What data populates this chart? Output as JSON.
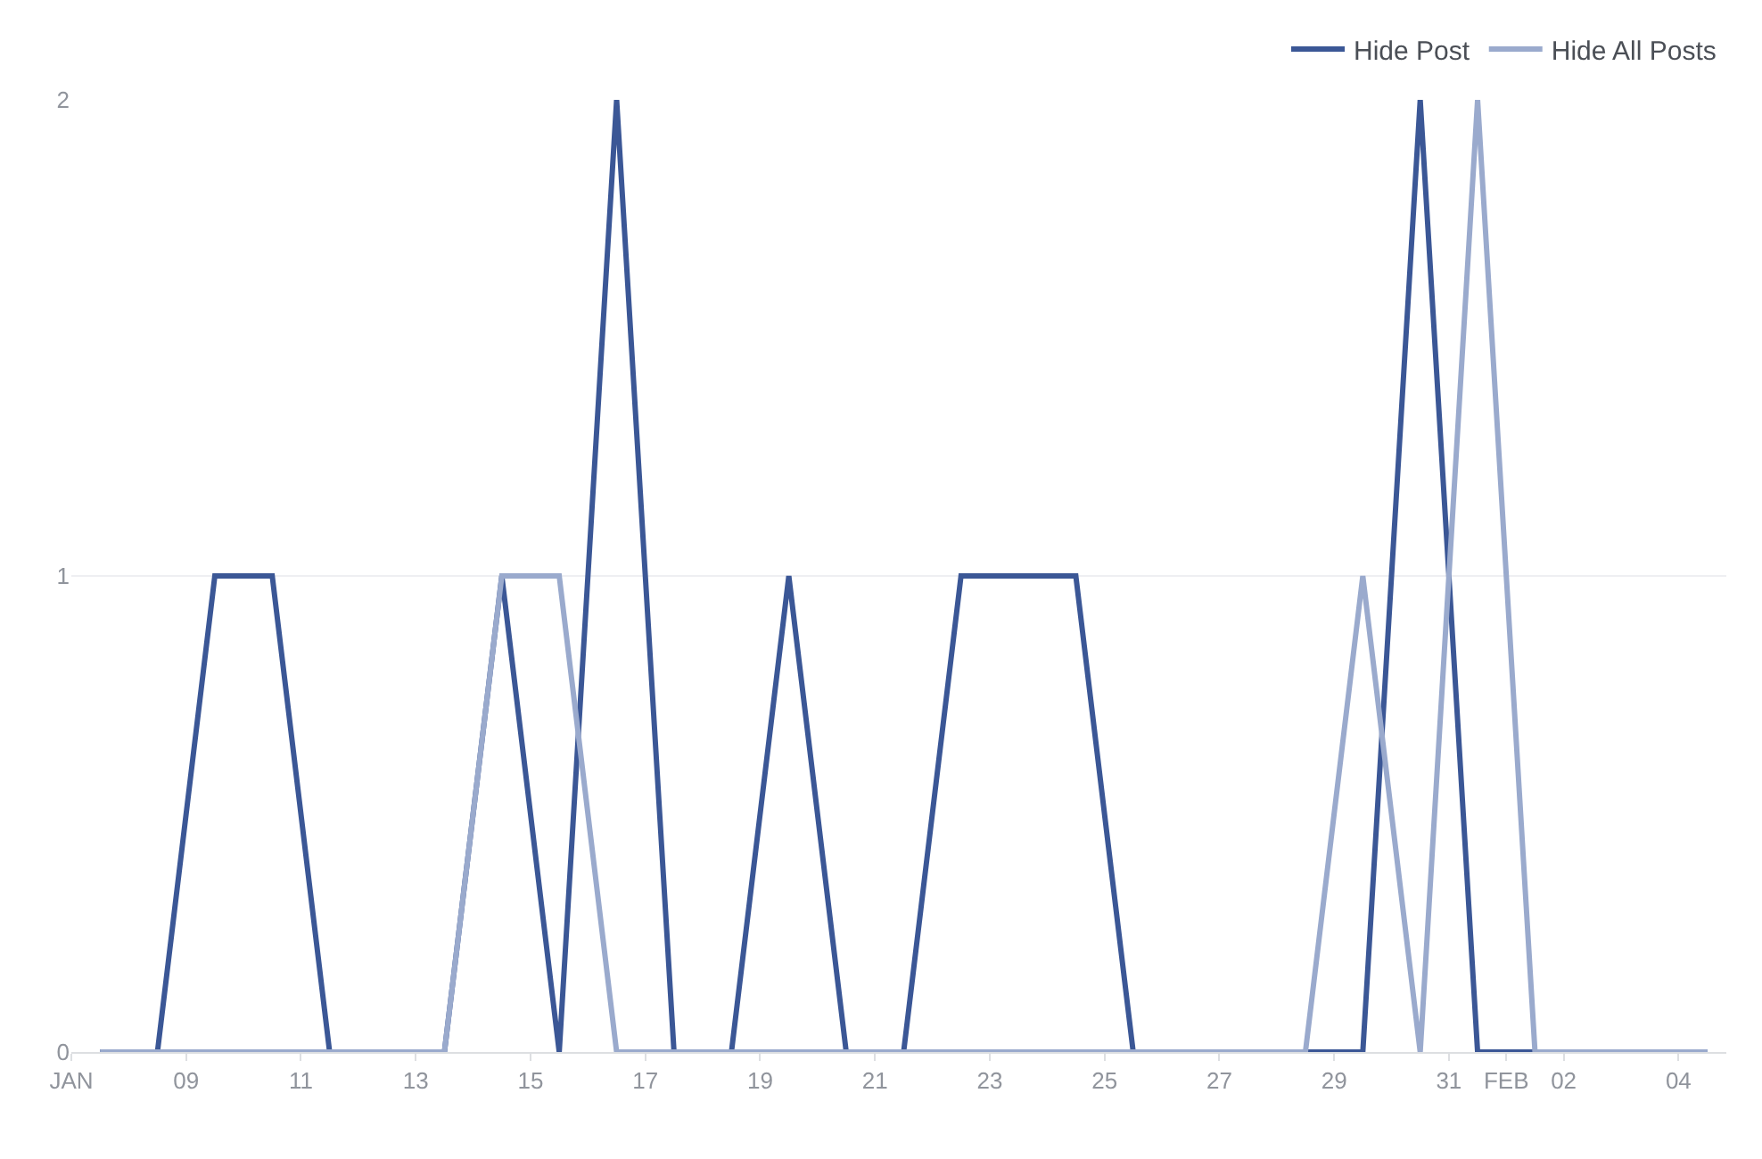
{
  "chart_data": {
    "type": "line",
    "x": [
      "--01-07T12:00",
      "--01-08T12:00",
      "--01-09T12:00",
      "--01-10T12:00",
      "--01-11T12:00",
      "--01-12T12:00",
      "--01-13T12:00",
      "--01-14T12:00",
      "--01-15T12:00",
      "--01-16T12:00",
      "--01-17T12:00",
      "--01-18T12:00",
      "--01-19T12:00",
      "--01-20T12:00",
      "--01-21T12:00",
      "--01-22T12:00",
      "--01-23T12:00",
      "--01-24T12:00",
      "--01-25T12:00",
      "--01-26T12:00",
      "--01-27T12:00",
      "--01-28T12:00",
      "--01-29T12:00",
      "--01-30T12:00",
      "--01-31T12:00",
      "--02-01T12:00",
      "--02-02T12:00",
      "--02-03T12:00",
      "--02-04T12:00"
    ],
    "series": [
      {
        "name": "Hide Post",
        "color": "#3b5796",
        "values": [
          0,
          0,
          1,
          1,
          0,
          0,
          0,
          1,
          0,
          2,
          0,
          0,
          1,
          0,
          0,
          1,
          1,
          1,
          0,
          0,
          0,
          0,
          0,
          2,
          0,
          0,
          0,
          0,
          0
        ]
      },
      {
        "name": "Hide All Posts",
        "color": "#9aaacd",
        "values": [
          0,
          0,
          0,
          0,
          0,
          0,
          0,
          1,
          1,
          0,
          0,
          0,
          0,
          0,
          0,
          0,
          0,
          0,
          0,
          0,
          0,
          0,
          1,
          0,
          2,
          0,
          0,
          0,
          0
        ]
      }
    ],
    "xlim": [
      "--01-07",
      "--02-04T20:00"
    ],
    "xticks": [
      {
        "value": "--01-07",
        "label": "JAN"
      },
      {
        "value": "--01-09",
        "label": "09"
      },
      {
        "value": "--01-11",
        "label": "11"
      },
      {
        "value": "--01-13",
        "label": "13"
      },
      {
        "value": "--01-15",
        "label": "15"
      },
      {
        "value": "--01-17",
        "label": "17"
      },
      {
        "value": "--01-19",
        "label": "19"
      },
      {
        "value": "--01-21",
        "label": "21"
      },
      {
        "value": "--01-23",
        "label": "23"
      },
      {
        "value": "--01-25",
        "label": "25"
      },
      {
        "value": "--01-27",
        "label": "27"
      },
      {
        "value": "--01-29",
        "label": "29"
      },
      {
        "value": "--01-31",
        "label": "31"
      },
      {
        "value": "--02-01",
        "label": "FEB"
      },
      {
        "value": "--02-02",
        "label": "02"
      },
      {
        "value": "--02-04",
        "label": "04"
      }
    ],
    "ylim": [
      0,
      2
    ],
    "yticks": [
      0,
      1,
      2
    ],
    "grid": "y",
    "legend": "top right",
    "marker": "none",
    "line_style": "solid"
  }
}
